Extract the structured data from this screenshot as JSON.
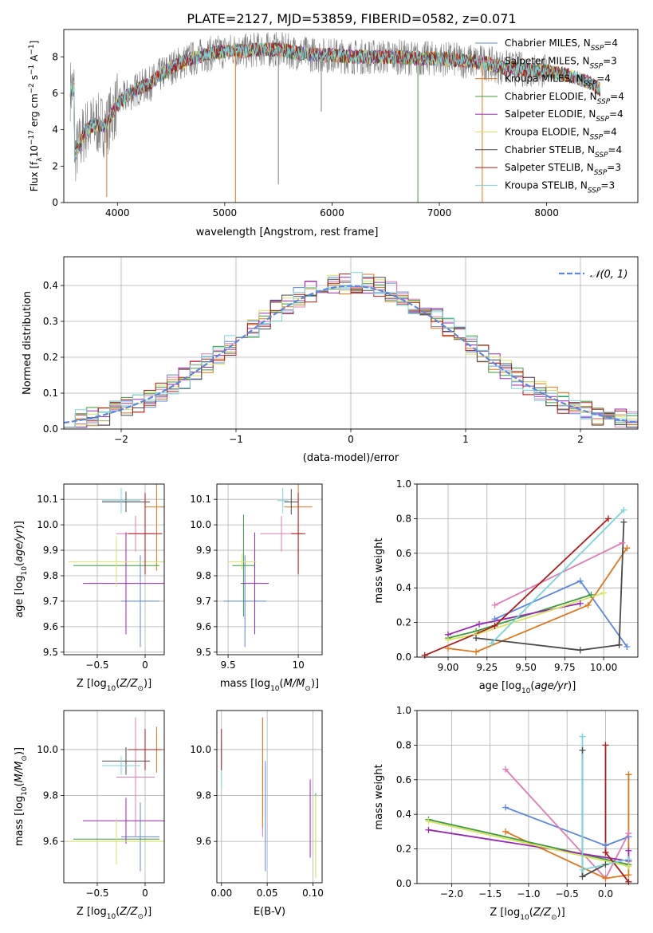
{
  "figure": {
    "title": "PLATE=2127, MJD=53859, FIBERID=0582, z=0.071"
  },
  "colors": {
    "Chabrier MILES": "#5b87e0",
    "Salpeter MILES": "#e07bb5",
    "Kroupa MILES": "#e0761a",
    "Chabrier ELODIE": "#3c9b3c",
    "Salpeter ELODIE": "#9b26b6",
    "Kroupa ELODIE": "#d7e35e",
    "Chabrier STELIB": "#4a4a4a",
    "Salpeter STELIB": "#b01a1a",
    "Kroupa STELIB": "#79d6dc",
    "data": "#7f7f7f",
    "normal": "#5b87e0",
    "grid": "#b0b0b0"
  },
  "chart_data": [
    {
      "id": "spectrum",
      "type": "line",
      "xlabel": "wavelength [Angstrom, rest frame]",
      "ylabel": "Flux [f_λ 10^-17 erg cm^-2 s^-1 A^-1]",
      "xlim": [
        3500,
        8850
      ],
      "ylim": [
        0,
        9.5
      ],
      "xticks": [
        4000,
        5000,
        6000,
        7000,
        8000
      ],
      "yticks": [
        0,
        2,
        4,
        6,
        8
      ],
      "grid": false,
      "legend_position": "right",
      "legend": [
        {
          "name": "Chabrier MILES",
          "label": "Chabrier MILES, N",
          "sub": "SSP",
          "eq": "=4"
        },
        {
          "name": "Salpeter MILES",
          "label": "Salpeter MILES, N",
          "sub": "SSP",
          "eq": "=3"
        },
        {
          "name": "Kroupa MILES",
          "label": "Kroupa MILES, N",
          "sub": "SSP",
          "eq": "=4"
        },
        {
          "name": "Chabrier ELODIE",
          "label": "Chabrier ELODIE, N",
          "sub": "SSP",
          "eq": "=4"
        },
        {
          "name": "Salpeter ELODIE",
          "label": "Salpeter ELODIE, N",
          "sub": "SSP",
          "eq": "=4"
        },
        {
          "name": "Kroupa ELODIE",
          "label": "Kroupa ELODIE, N",
          "sub": "SSP",
          "eq": "=4"
        },
        {
          "name": "Chabrier STELIB",
          "label": "Chabrier STELIB, N",
          "sub": "SSP",
          "eq": "=4"
        },
        {
          "name": "Salpeter STELIB",
          "label": "Salpeter STELIB, N",
          "sub": "SSP",
          "eq": "=3"
        },
        {
          "name": "Kroupa STELIB",
          "label": "Kroupa STELIB, N",
          "sub": "SSP",
          "eq": "=3"
        }
      ],
      "continuum": [
        [
          3600,
          2.6
        ],
        [
          3650,
          3.2
        ],
        [
          3700,
          4.0
        ],
        [
          3800,
          4.3
        ],
        [
          3900,
          4.2
        ],
        [
          3950,
          4.9
        ],
        [
          4000,
          5.4
        ],
        [
          4100,
          5.9
        ],
        [
          4200,
          6.3
        ],
        [
          4300,
          6.5
        ],
        [
          4400,
          7.0
        ],
        [
          4500,
          7.4
        ],
        [
          4600,
          7.7
        ],
        [
          4700,
          7.9
        ],
        [
          4800,
          8.1
        ],
        [
          4900,
          8.2
        ],
        [
          5000,
          8.3
        ],
        [
          5100,
          8.4
        ],
        [
          5200,
          8.3
        ],
        [
          5300,
          8.4
        ],
        [
          5500,
          8.4
        ],
        [
          5700,
          8.2
        ],
        [
          5900,
          8.1
        ],
        [
          6000,
          8.1
        ],
        [
          6200,
          8.0
        ],
        [
          6400,
          8.0
        ],
        [
          6600,
          8.0
        ],
        [
          6800,
          7.9
        ],
        [
          7000,
          7.9
        ],
        [
          7200,
          7.8
        ],
        [
          7400,
          7.7
        ],
        [
          7600,
          7.4
        ],
        [
          7800,
          7.3
        ],
        [
          8000,
          7.2
        ],
        [
          8200,
          7.0
        ],
        [
          8400,
          6.6
        ],
        [
          8500,
          6.2
        ]
      ],
      "data_end": 8000,
      "model_end": 8500,
      "spikes": [
        [
          5100,
          0.0
        ],
        [
          5500,
          1.0
        ],
        [
          5900,
          5.0
        ],
        [
          6800,
          0.0
        ],
        [
          7400,
          0.0
        ],
        [
          3900,
          0.3
        ]
      ]
    },
    {
      "id": "residuals",
      "type": "step",
      "xlabel": "(data-model)/error",
      "ylabel": "Normed distribution",
      "xlim": [
        -2.5,
        2.5
      ],
      "ylim": [
        0,
        0.48
      ],
      "xticks": [
        -2,
        -1,
        0,
        1,
        2
      ],
      "yticks": [
        0.0,
        0.1,
        0.2,
        0.3,
        0.4
      ],
      "grid": true,
      "legend": "𝒩(0, 1)",
      "bin_width": 0.1
    },
    {
      "id": "age-vs-Z",
      "type": "errorbar",
      "xlabel": "Z [log10(Z/Z⊙)]",
      "ylabel": "age [log10(age/yr)]",
      "xlim": [
        -0.85,
        0.2
      ],
      "ylim": [
        9.49,
        10.16
      ],
      "xticks": [
        -0.5,
        0.0
      ],
      "yticks": [
        9.5,
        9.6,
        9.7,
        9.8,
        9.9,
        10.0,
        10.1
      ],
      "grid": true,
      "points": [
        {
          "series": "Chabrier MILES",
          "x": -0.05,
          "xerr": 0.2,
          "y": 9.7,
          "yerr": 0.18
        },
        {
          "series": "Salpeter MILES",
          "x": -0.1,
          "xerr": 0.2,
          "y": 9.965,
          "yerr": 0.07
        },
        {
          "series": "Kroupa MILES",
          "x": 0.12,
          "xerr": 0.12,
          "y": 10.07,
          "yerr": 0.25
        },
        {
          "series": "Chabrier ELODIE",
          "x": -0.3,
          "xerr": 0.45,
          "y": 9.84,
          "yerr": 0.05
        },
        {
          "series": "Salpeter ELODIE",
          "x": -0.2,
          "xerr": 0.45,
          "y": 9.77,
          "yerr": 0.2
        },
        {
          "series": "Kroupa ELODIE",
          "x": -0.3,
          "xerr": 0.5,
          "y": 9.855,
          "yerr": 0.1
        },
        {
          "series": "Chabrier STELIB",
          "x": -0.2,
          "xerr": 0.25,
          "y": 10.09,
          "yerr": 0.04
        },
        {
          "series": "Salpeter STELIB",
          "x": 0.0,
          "xerr": 0.18,
          "y": 9.965,
          "yerr": 0.16
        },
        {
          "series": "Kroupa STELIB",
          "x": -0.25,
          "xerr": 0.2,
          "y": 10.095,
          "yerr": 0.05
        }
      ]
    },
    {
      "id": "age-vs-mass",
      "type": "errorbar",
      "xlabel": "mass [log10(M/M⊙)]",
      "ylabel": "",
      "xlim": [
        9.42,
        10.17
      ],
      "ylim": [
        9.49,
        10.16
      ],
      "xticks": [
        9.5,
        10.0
      ],
      "yticks": [
        9.5,
        9.6,
        9.7,
        9.8,
        9.9,
        10.0,
        10.1
      ],
      "grid": true,
      "points": [
        {
          "series": "Chabrier MILES",
          "x": 9.62,
          "xerr": 0.15,
          "y": 9.7,
          "yerr": 0.18
        },
        {
          "series": "Salpeter MILES",
          "x": 9.88,
          "xerr": 0.15,
          "y": 9.965,
          "yerr": 0.07
        },
        {
          "series": "Kroupa MILES",
          "x": 10.0,
          "xerr": 0.1,
          "y": 10.07,
          "yerr": 0.25
        },
        {
          "series": "Chabrier ELODIE",
          "x": 9.61,
          "xerr": 0.08,
          "y": 9.84,
          "yerr": 0.2
        },
        {
          "series": "Salpeter ELODIE",
          "x": 9.69,
          "xerr": 0.1,
          "y": 9.77,
          "yerr": 0.2
        },
        {
          "series": "Kroupa ELODIE",
          "x": 9.6,
          "xerr": 0.1,
          "y": 9.855,
          "yerr": 0.03
        },
        {
          "series": "Chabrier STELIB",
          "x": 9.95,
          "xerr": 0.05,
          "y": 10.09,
          "yerr": 0.05
        },
        {
          "series": "Salpeter STELIB",
          "x": 10.0,
          "xerr": 0.05,
          "y": 9.965,
          "yerr": 0.16
        },
        {
          "series": "Kroupa STELIB",
          "x": 9.89,
          "xerr": 0.04,
          "y": 10.095,
          "yerr": 0.05
        }
      ]
    },
    {
      "id": "weight-vs-age",
      "type": "line",
      "xlabel": "age [log10(age/yr)]",
      "ylabel": "mass weight",
      "xlim": [
        8.8,
        10.22
      ],
      "ylim": [
        0,
        1
      ],
      "xticks": [
        9.0,
        9.25,
        9.5,
        9.75,
        10.0
      ],
      "xtick_labels": [
        "9.00",
        "9.25",
        "9.50",
        "9.75",
        "10.00"
      ],
      "yticks": [
        0.0,
        0.2,
        0.4,
        0.6,
        0.8,
        1.0
      ],
      "grid": true,
      "series": [
        {
          "name": "Chabrier MILES",
          "points": [
            [
              9.3,
              0.22
            ],
            [
              9.85,
              0.44
            ],
            [
              10.15,
              0.06
            ]
          ]
        },
        {
          "name": "Salpeter MILES",
          "points": [
            [
              9.3,
              0.3
            ],
            [
              10.12,
              0.66
            ]
          ]
        },
        {
          "name": "Kroupa MILES",
          "points": [
            [
              9.0,
              0.05
            ],
            [
              9.18,
              0.03
            ],
            [
              9.9,
              0.3
            ],
            [
              10.15,
              0.63
            ]
          ]
        },
        {
          "name": "Chabrier ELODIE",
          "points": [
            [
              9.0,
              0.11
            ],
            [
              9.18,
              0.15
            ],
            [
              9.92,
              0.36
            ]
          ]
        },
        {
          "name": "Salpeter ELODIE",
          "points": [
            [
              9.0,
              0.13
            ],
            [
              9.2,
              0.19
            ],
            [
              9.85,
              0.31
            ]
          ]
        },
        {
          "name": "Kroupa ELODIE",
          "points": [
            [
              9.0,
              0.1
            ],
            [
              9.18,
              0.13
            ],
            [
              10.0,
              0.37
            ]
          ]
        },
        {
          "name": "Chabrier STELIB",
          "points": [
            [
              9.18,
              0.11
            ],
            [
              9.85,
              0.04
            ],
            [
              10.1,
              0.07
            ],
            [
              10.13,
              0.78
            ]
          ]
        },
        {
          "name": "Salpeter STELIB",
          "points": [
            [
              8.85,
              0.01
            ],
            [
              9.3,
              0.18
            ],
            [
              10.03,
              0.8
            ]
          ]
        },
        {
          "name": "Kroupa STELIB",
          "points": [
            [
              9.28,
              0.08
            ],
            [
              10.13,
              0.85
            ]
          ]
        }
      ]
    },
    {
      "id": "mass-vs-Z",
      "type": "errorbar",
      "xlabel": "Z [log10(Z/Z⊙)]",
      "ylabel": "mass [log10(M/M⊙)]",
      "xlim": [
        -0.85,
        0.2
      ],
      "ylim": [
        9.42,
        10.17
      ],
      "xticks": [
        -0.5,
        0.0
      ],
      "yticks": [
        9.6,
        9.8,
        10.0
      ],
      "grid": true,
      "points": [
        {
          "series": "Chabrier MILES",
          "x": -0.05,
          "xerr": 0.2,
          "y": 9.62,
          "yerr": 0.15
        },
        {
          "series": "Salpeter MILES",
          "x": -0.1,
          "xerr": 0.2,
          "y": 9.88,
          "yerr": 0.26
        },
        {
          "series": "Kroupa MILES",
          "x": 0.12,
          "xerr": 0.12,
          "y": 10.0,
          "yerr": 0.1
        },
        {
          "series": "Chabrier ELODIE",
          "x": -0.3,
          "xerr": 0.45,
          "y": 9.61,
          "yerr": 0.08
        },
        {
          "series": "Salpeter ELODIE",
          "x": -0.2,
          "xerr": 0.45,
          "y": 9.69,
          "yerr": 0.1
        },
        {
          "series": "Kroupa ELODIE",
          "x": -0.3,
          "xerr": 0.5,
          "y": 9.6,
          "yerr": 0.1
        },
        {
          "series": "Chabrier STELIB",
          "x": -0.2,
          "xerr": 0.25,
          "y": 9.95,
          "yerr": 0.06
        },
        {
          "series": "Salpeter STELIB",
          "x": 0.0,
          "xerr": 0.18,
          "y": 10.0,
          "yerr": 0.09
        },
        {
          "series": "Kroupa STELIB",
          "x": -0.25,
          "xerr": 0.2,
          "y": 9.93,
          "yerr": 0.04
        }
      ]
    },
    {
      "id": "mass-vs-ebv",
      "type": "errorbar",
      "xlabel": "E(B-V)",
      "ylabel": "",
      "xlim": [
        -0.005,
        0.11
      ],
      "ylim": [
        9.42,
        10.17
      ],
      "xticks": [
        0.0,
        0.05,
        0.1
      ],
      "xtick_labels": [
        "0.00",
        "0.05",
        "0.10"
      ],
      "yticks": [
        9.6,
        9.8,
        10.0
      ],
      "grid": true,
      "points": [
        {
          "series": "Kroupa STELIB",
          "x": 0.0,
          "xerr": 0,
          "y": 9.93,
          "yerr": 0.1
        },
        {
          "series": "Salpeter STELIB",
          "x": 0.0,
          "xerr": 0,
          "y": 10.0,
          "yerr": 0.09
        },
        {
          "series": "Salpeter MILES",
          "x": 0.045,
          "xerr": 0,
          "y": 9.88,
          "yerr": 0.26
        },
        {
          "series": "Kroupa MILES",
          "x": 0.045,
          "xerr": 0,
          "y": 9.9,
          "yerr": 0.24
        },
        {
          "series": "Chabrier MILES",
          "x": 0.048,
          "xerr": 0,
          "y": 9.71,
          "yerr": 0.24
        },
        {
          "series": "Salpeter ELODIE",
          "x": 0.097,
          "xerr": 0,
          "y": 9.7,
          "yerr": 0.17
        },
        {
          "series": "Chabrier ELODIE",
          "x": 0.103,
          "xerr": 0,
          "y": 9.63,
          "yerr": 0.18
        },
        {
          "series": "Kroupa ELODIE",
          "x": 0.103,
          "xerr": 0,
          "y": 9.62,
          "yerr": 0.18
        }
      ]
    },
    {
      "id": "weight-vs-Z",
      "type": "line",
      "xlabel": "Z [log10(Z/Z⊙)]",
      "ylabel": "mass weight",
      "xlim": [
        -2.45,
        0.42
      ],
      "ylim": [
        0,
        1
      ],
      "xticks": [
        -2.0,
        -1.5,
        -1.0,
        -0.5,
        0.0
      ],
      "xtick_labels": [
        "−2.0",
        "−1.5",
        "−1.0",
        "−0.5",
        "0.0"
      ],
      "yticks": [
        0.0,
        0.2,
        0.4,
        0.6,
        0.8,
        1.0
      ],
      "grid": true,
      "series": [
        {
          "name": "Chabrier MILES",
          "points": [
            [
              -1.3,
              0.44
            ],
            [
              0.0,
              0.22
            ],
            [
              0.3,
              0.27
            ]
          ]
        },
        {
          "name": "Salpeter MILES",
          "points": [
            [
              -1.3,
              0.66
            ],
            [
              0.0,
              0.03
            ],
            [
              0.3,
              0.29
            ]
          ]
        },
        {
          "name": "Kroupa MILES",
          "points": [
            [
              -1.3,
              0.3
            ],
            [
              0.0,
              0.03
            ],
            [
              0.3,
              0.05
            ],
            [
              0.3,
              0.63
            ]
          ]
        },
        {
          "name": "Chabrier ELODIE",
          "points": [
            [
              -2.3,
              0.37
            ],
            [
              0.3,
              0.11
            ]
          ]
        },
        {
          "name": "Salpeter ELODIE",
          "points": [
            [
              -2.3,
              0.31
            ],
            [
              0.3,
              0.13
            ],
            [
              0.3,
              0.19
            ]
          ]
        },
        {
          "name": "Kroupa ELODIE",
          "points": [
            [
              -2.3,
              0.36
            ],
            [
              0.3,
              0.1
            ]
          ]
        },
        {
          "name": "Chabrier STELIB",
          "points": [
            [
              -0.3,
              0.77
            ],
            [
              -0.3,
              0.04
            ],
            [
              0.0,
              0.11
            ]
          ]
        },
        {
          "name": "Salpeter STELIB",
          "points": [
            [
              0.0,
              0.8
            ],
            [
              0.0,
              0.18
            ],
            [
              0.3,
              0.01
            ]
          ]
        },
        {
          "name": "Kroupa STELIB",
          "points": [
            [
              -0.3,
              0.85
            ],
            [
              -0.3,
              0.08
            ],
            [
              0.3,
              0.14
            ]
          ]
        }
      ]
    }
  ]
}
